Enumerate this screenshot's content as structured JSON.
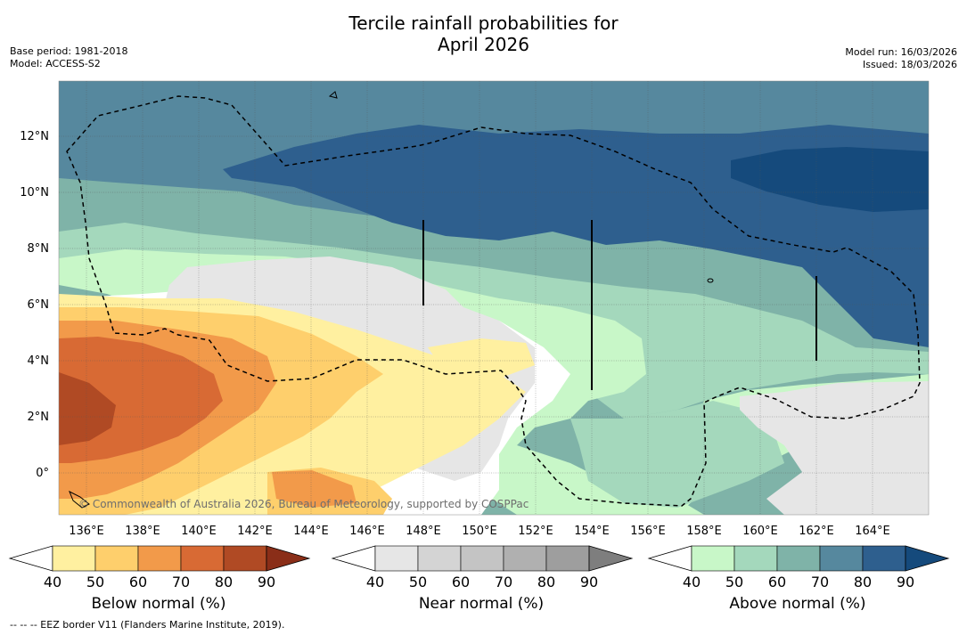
{
  "title": {
    "line1": "Tercile rainfall probabilities for",
    "line2": "April 2026"
  },
  "meta": {
    "base_period": "Base period: 1981-2018",
    "model": "Model: ACCESS-S2",
    "model_run": "Model run: 16/03/2026",
    "issued": "Issued: 18/03/2026"
  },
  "map": {
    "lat_labels": [
      "12°N",
      "10°N",
      "8°N",
      "6°N",
      "4°N",
      "2°N",
      "0°"
    ],
    "lon_labels": [
      "136°E",
      "138°E",
      "140°E",
      "142°E",
      "144°E",
      "146°E",
      "148°E",
      "150°E",
      "152°E",
      "154°E",
      "156°E",
      "158°E",
      "160°E",
      "162°E",
      "164°E"
    ],
    "copyright": "© Commonwealth of Australia 2026, Bureau of Meteorology, supported by COSPPac"
  },
  "legend": {
    "below": {
      "label": "Below normal (%)",
      "ticks": [
        "40",
        "50",
        "60",
        "70",
        "80",
        "90"
      ],
      "colors": [
        "#ffffff",
        "#fff0a0",
        "#fecf6c",
        "#f29a4a",
        "#d86a34",
        "#b04a24",
        "#8a2e18"
      ]
    },
    "near": {
      "label": "Near normal (%)",
      "ticks": [
        "40",
        "50",
        "60",
        "70",
        "80",
        "90"
      ],
      "colors": [
        "#ffffff",
        "#e6e6e6",
        "#d4d4d4",
        "#c4c4c4",
        "#b0b0b0",
        "#9e9e9e",
        "#7e7e7e"
      ]
    },
    "above": {
      "label": "Above normal (%)",
      "ticks": [
        "40",
        "50",
        "60",
        "70",
        "80",
        "90"
      ],
      "colors": [
        "#ffffff",
        "#c8f7c8",
        "#a4d8bc",
        "#7fb3a8",
        "#56889e",
        "#2e5f8e",
        "#154a7c"
      ]
    }
  },
  "footnote": "-- -- -- EEZ border V11 (Flanders Marine Institute, 2019)."
}
